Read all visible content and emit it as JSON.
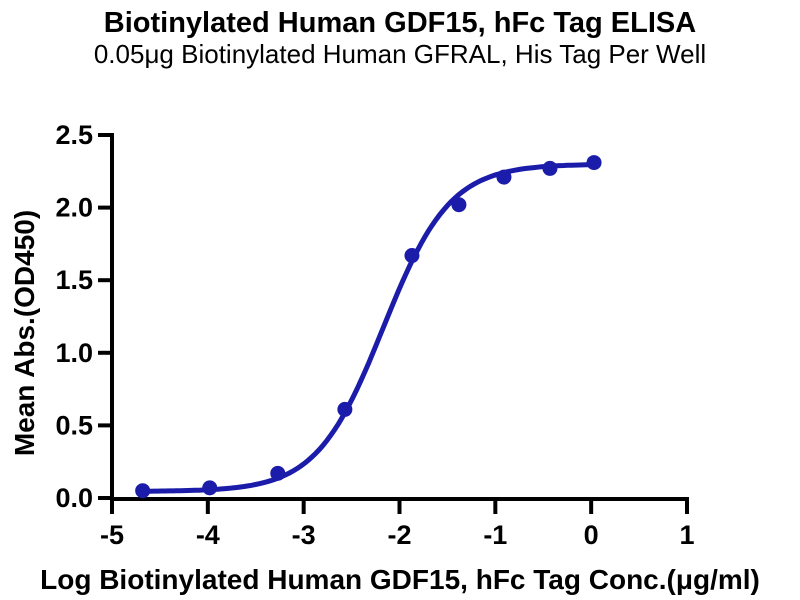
{
  "chart_data": {
    "type": "scatter",
    "title": "Biotinylated Human GDF15, hFc Tag ELISA",
    "subtitle": "0.05μg Biotinylated Human GFRAL, His Tag Per Well",
    "xlabel": "Log Biotinylated Human GDF15, hFc Tag Conc.(μg/ml)",
    "ylabel": "Mean Abs.(OD450)",
    "xlim": [
      -5,
      1
    ],
    "ylim": [
      0,
      2.5
    ],
    "xticks": [
      -5,
      -4,
      -3,
      -2,
      -1,
      0,
      1
    ],
    "xtick_labels": [
      "-5",
      "-4",
      "-3",
      "-2",
      "-1",
      "0",
      "1"
    ],
    "yticks": [
      0,
      0.5,
      1.0,
      1.5,
      2.0,
      2.5
    ],
    "ytick_labels": [
      "0.0",
      "0.5",
      "1.0",
      "1.5",
      "2.0",
      "2.5"
    ],
    "grid": false,
    "legend": "none",
    "axis_color": "#000000",
    "series": [
      {
        "name": "Biotinylated Human GDF15, hFc Tag",
        "color": "#1C1CAA",
        "marker": "circle",
        "x": [
          -4.68,
          -3.98,
          -3.27,
          -2.57,
          -1.87,
          -1.38,
          -0.91,
          -0.43,
          0.03
        ],
        "y": [
          0.05,
          0.07,
          0.17,
          0.61,
          1.67,
          2.02,
          2.21,
          2.27,
          2.31
        ]
      }
    ],
    "fit_curve": {
      "model": "4PL",
      "bottom": 0.045,
      "top": 2.3,
      "log_ec50": -2.17,
      "hill": 1.25
    }
  }
}
